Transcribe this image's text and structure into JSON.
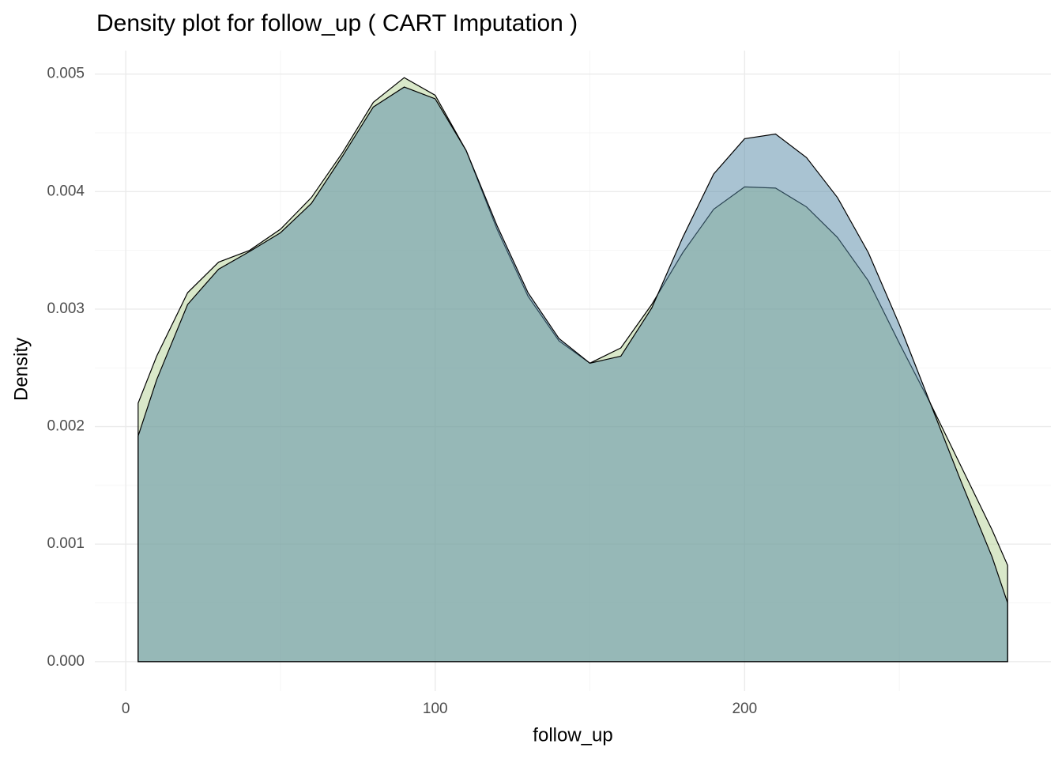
{
  "chart_data": {
    "type": "area",
    "title": "Density plot for follow_up ( CART Imputation )",
    "x_label": "follow_up",
    "y_label": "Density",
    "x": [
      4,
      10,
      20,
      30,
      40,
      50,
      60,
      70,
      80,
      90,
      100,
      110,
      120,
      130,
      140,
      150,
      160,
      170,
      180,
      190,
      200,
      210,
      220,
      230,
      240,
      250,
      260,
      270,
      280,
      285
    ],
    "series": [
      {
        "color": "#b3d193",
        "values": [
          0.0022,
          0.0026,
          0.00314,
          0.0034,
          0.0035,
          0.00368,
          0.00395,
          0.00433,
          0.00476,
          0.00497,
          0.00482,
          0.00435,
          0.00368,
          0.00311,
          0.00273,
          0.00254,
          0.00267,
          0.00304,
          0.00348,
          0.00385,
          0.00404,
          0.00403,
          0.00387,
          0.00361,
          0.00324,
          0.00271,
          0.0022,
          0.00166,
          0.00112,
          0.00082
        ]
      },
      {
        "color": "#5387a5",
        "values": [
          0.00192,
          0.0024,
          0.00304,
          0.00334,
          0.00349,
          0.00365,
          0.0039,
          0.0043,
          0.00472,
          0.00489,
          0.00479,
          0.00435,
          0.00371,
          0.00314,
          0.00275,
          0.00254,
          0.0026,
          0.00301,
          0.00361,
          0.00415,
          0.00445,
          0.00449,
          0.00429,
          0.00395,
          0.00348,
          0.00287,
          0.0022,
          0.00153,
          0.00089,
          0.0005
        ]
      }
    ],
    "xlim": [
      -10,
      299
    ],
    "ylim": [
      -0.00025,
      0.0052
    ],
    "xticks": [
      0,
      100,
      200
    ],
    "yticks": [
      {
        "value": 0,
        "label": "0.000"
      },
      0.001,
      0.002,
      0.003,
      0.004,
      0.005
    ],
    "xminorticks": [
      50,
      150,
      250
    ],
    "yminorticks": [
      0.0005,
      0.0015,
      0.0025,
      0.0035,
      0.0045
    ],
    "grid": true
  }
}
